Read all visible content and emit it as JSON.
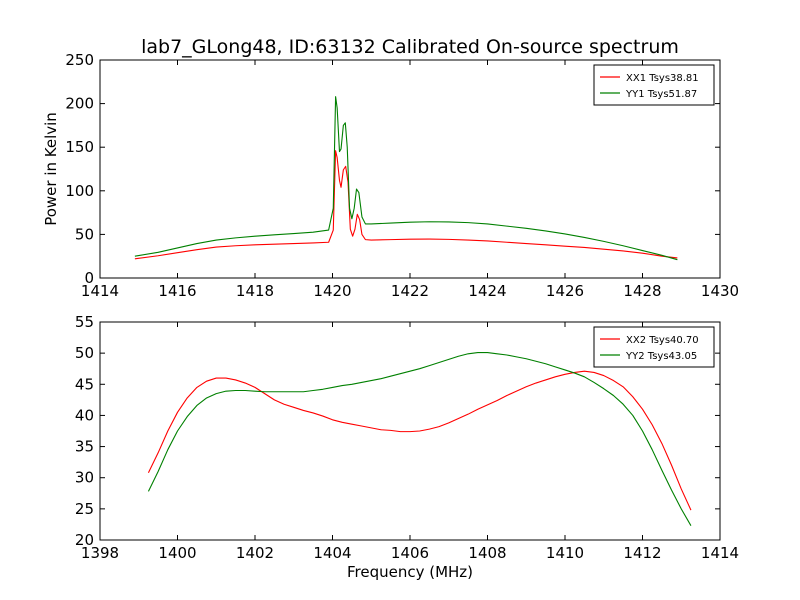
{
  "figure": {
    "title": "lab7_GLong48, ID:63132 Calibrated On-source spectrum",
    "ylabel": "Power in Kelvin",
    "xlabel": "Frequency (MHz)"
  },
  "chart_data": [
    {
      "type": "line",
      "xlim": [
        1414,
        1430
      ],
      "ylim": [
        0,
        250
      ],
      "xticks": [
        1414,
        1416,
        1418,
        1420,
        1422,
        1424,
        1426,
        1428,
        1430
      ],
      "yticks": [
        0,
        50,
        100,
        150,
        200,
        250
      ],
      "legend_position": "top-right",
      "series": [
        {
          "name": "XX1 Tsys38.81",
          "color": "#ff0000",
          "points": [
            [
              1414.9,
              22
            ],
            [
              1415.5,
              25.5
            ],
            [
              1416,
              29
            ],
            [
              1416.5,
              32.5
            ],
            [
              1417,
              35.5
            ],
            [
              1417.5,
              37
            ],
            [
              1418,
              38
            ],
            [
              1418.5,
              38.8
            ],
            [
              1419,
              39.5
            ],
            [
              1419.5,
              40.2
            ],
            [
              1419.9,
              41
            ],
            [
              1420.02,
              55
            ],
            [
              1420.08,
              146
            ],
            [
              1420.12,
              138
            ],
            [
              1420.18,
              112
            ],
            [
              1420.22,
              104
            ],
            [
              1420.28,
              124
            ],
            [
              1420.34,
              128
            ],
            [
              1420.4,
              110
            ],
            [
              1420.46,
              56
            ],
            [
              1420.52,
              48
            ],
            [
              1420.58,
              56
            ],
            [
              1420.64,
              73
            ],
            [
              1420.7,
              67
            ],
            [
              1420.76,
              50
            ],
            [
              1420.85,
              44
            ],
            [
              1421,
              43.5
            ],
            [
              1421.5,
              44
            ],
            [
              1422,
              44.5
            ],
            [
              1422.5,
              44.6
            ],
            [
              1423,
              44.3
            ],
            [
              1423.5,
              43.5
            ],
            [
              1424,
              42.5
            ],
            [
              1424.5,
              41
            ],
            [
              1425,
              39.5
            ],
            [
              1425.5,
              38
            ],
            [
              1426,
              36.5
            ],
            [
              1426.5,
              35
            ],
            [
              1427,
              33
            ],
            [
              1427.5,
              31
            ],
            [
              1428,
              28.5
            ],
            [
              1428.5,
              25
            ],
            [
              1428.9,
              23
            ]
          ]
        },
        {
          "name": "YY1 Tsys51.87",
          "color": "#008000",
          "points": [
            [
              1414.9,
              25
            ],
            [
              1415.5,
              29.5
            ],
            [
              1416,
              34.5
            ],
            [
              1416.5,
              39.5
            ],
            [
              1417,
              43.5
            ],
            [
              1417.5,
              46
            ],
            [
              1418,
              48
            ],
            [
              1418.5,
              49.5
            ],
            [
              1419,
              51
            ],
            [
              1419.5,
              52.5
            ],
            [
              1419.9,
              55
            ],
            [
              1420.02,
              80
            ],
            [
              1420.08,
              208
            ],
            [
              1420.12,
              195
            ],
            [
              1420.18,
              145
            ],
            [
              1420.22,
              148
            ],
            [
              1420.28,
              175
            ],
            [
              1420.33,
              178
            ],
            [
              1420.38,
              150
            ],
            [
              1420.44,
              80
            ],
            [
              1420.5,
              68
            ],
            [
              1420.56,
              80
            ],
            [
              1420.62,
              102
            ],
            [
              1420.68,
              98
            ],
            [
              1420.76,
              70
            ],
            [
              1420.85,
              62
            ],
            [
              1421,
              62
            ],
            [
              1421.5,
              63
            ],
            [
              1422,
              64
            ],
            [
              1422.5,
              64.5
            ],
            [
              1423,
              64.3
            ],
            [
              1423.5,
              63.5
            ],
            [
              1424,
              62
            ],
            [
              1424.5,
              59.5
            ],
            [
              1425,
              57
            ],
            [
              1425.5,
              54
            ],
            [
              1426,
              50.5
            ],
            [
              1426.5,
              46.5
            ],
            [
              1427,
              42
            ],
            [
              1427.5,
              37
            ],
            [
              1428,
              31.5
            ],
            [
              1428.5,
              26
            ],
            [
              1428.9,
              21
            ]
          ]
        }
      ]
    },
    {
      "type": "line",
      "xlim": [
        1398,
        1414
      ],
      "ylim": [
        20,
        55
      ],
      "xticks": [
        1398,
        1400,
        1402,
        1404,
        1406,
        1408,
        1410,
        1412,
        1414
      ],
      "yticks": [
        20,
        25,
        30,
        35,
        40,
        45,
        50,
        55
      ],
      "legend_position": "top-right",
      "series": [
        {
          "name": "XX2 Tsys40.70",
          "color": "#ff0000",
          "points": [
            [
              1399.25,
              30.8
            ],
            [
              1399.5,
              34
            ],
            [
              1399.75,
              37.5
            ],
            [
              1400,
              40.5
            ],
            [
              1400.25,
              42.8
            ],
            [
              1400.5,
              44.5
            ],
            [
              1400.75,
              45.5
            ],
            [
              1401,
              46
            ],
            [
              1401.25,
              46
            ],
            [
              1401.5,
              45.7
            ],
            [
              1401.75,
              45.2
            ],
            [
              1402,
              44.5
            ],
            [
              1402.25,
              43.5
            ],
            [
              1402.5,
              42.5
            ],
            [
              1402.75,
              41.8
            ],
            [
              1403,
              41.3
            ],
            [
              1403.25,
              40.8
            ],
            [
              1403.5,
              40.4
            ],
            [
              1403.75,
              39.9
            ],
            [
              1404,
              39.3
            ],
            [
              1404.25,
              38.9
            ],
            [
              1404.5,
              38.6
            ],
            [
              1404.75,
              38.3
            ],
            [
              1405,
              38
            ],
            [
              1405.25,
              37.7
            ],
            [
              1405.5,
              37.6
            ],
            [
              1405.75,
              37.4
            ],
            [
              1406,
              37.4
            ],
            [
              1406.25,
              37.5
            ],
            [
              1406.5,
              37.8
            ],
            [
              1406.75,
              38.2
            ],
            [
              1407,
              38.8
            ],
            [
              1407.25,
              39.5
            ],
            [
              1407.5,
              40.2
            ],
            [
              1407.75,
              41
            ],
            [
              1408,
              41.7
            ],
            [
              1408.25,
              42.4
            ],
            [
              1408.5,
              43.2
            ],
            [
              1408.75,
              43.9
            ],
            [
              1409,
              44.6
            ],
            [
              1409.25,
              45.2
            ],
            [
              1409.5,
              45.7
            ],
            [
              1409.75,
              46.2
            ],
            [
              1410,
              46.6
            ],
            [
              1410.25,
              46.9
            ],
            [
              1410.5,
              47.1
            ],
            [
              1410.75,
              46.9
            ],
            [
              1411,
              46.4
            ],
            [
              1411.25,
              45.6
            ],
            [
              1411.5,
              44.6
            ],
            [
              1411.75,
              43
            ],
            [
              1412,
              41
            ],
            [
              1412.25,
              38.5
            ],
            [
              1412.5,
              35.5
            ],
            [
              1412.75,
              32
            ],
            [
              1413,
              28.2
            ],
            [
              1413.25,
              24.8
            ]
          ]
        },
        {
          "name": "YY2 Tsys43.05",
          "color": "#008000",
          "points": [
            [
              1399.25,
              27.8
            ],
            [
              1399.5,
              31
            ],
            [
              1399.75,
              34.5
            ],
            [
              1400,
              37.5
            ],
            [
              1400.25,
              39.8
            ],
            [
              1400.5,
              41.6
            ],
            [
              1400.75,
              42.8
            ],
            [
              1401,
              43.5
            ],
            [
              1401.25,
              43.9
            ],
            [
              1401.5,
              44
            ],
            [
              1401.75,
              44
            ],
            [
              1402,
              43.9
            ],
            [
              1402.25,
              43.8
            ],
            [
              1402.5,
              43.8
            ],
            [
              1402.75,
              43.8
            ],
            [
              1403,
              43.8
            ],
            [
              1403.25,
              43.8
            ],
            [
              1403.5,
              44
            ],
            [
              1403.75,
              44.2
            ],
            [
              1404,
              44.5
            ],
            [
              1404.25,
              44.8
            ],
            [
              1404.5,
              45
            ],
            [
              1404.75,
              45.3
            ],
            [
              1405,
              45.6
            ],
            [
              1405.25,
              45.9
            ],
            [
              1405.5,
              46.3
            ],
            [
              1405.75,
              46.7
            ],
            [
              1406,
              47.1
            ],
            [
              1406.25,
              47.5
            ],
            [
              1406.5,
              48
            ],
            [
              1406.75,
              48.5
            ],
            [
              1407,
              49
            ],
            [
              1407.25,
              49.5
            ],
            [
              1407.5,
              49.9
            ],
            [
              1407.75,
              50.1
            ],
            [
              1408,
              50.1
            ],
            [
              1408.25,
              49.9
            ],
            [
              1408.5,
              49.7
            ],
            [
              1408.75,
              49.4
            ],
            [
              1409,
              49.1
            ],
            [
              1409.25,
              48.7
            ],
            [
              1409.5,
              48.3
            ],
            [
              1409.75,
              47.8
            ],
            [
              1410,
              47.3
            ],
            [
              1410.25,
              46.8
            ],
            [
              1410.5,
              46.2
            ],
            [
              1410.75,
              45.3
            ],
            [
              1411,
              44.3
            ],
            [
              1411.25,
              43.2
            ],
            [
              1411.5,
              41.8
            ],
            [
              1411.75,
              40
            ],
            [
              1412,
              37.5
            ],
            [
              1412.25,
              34.5
            ],
            [
              1412.5,
              31.2
            ],
            [
              1412.75,
              28
            ],
            [
              1413,
              25
            ],
            [
              1413.25,
              22.3
            ]
          ]
        }
      ]
    }
  ]
}
